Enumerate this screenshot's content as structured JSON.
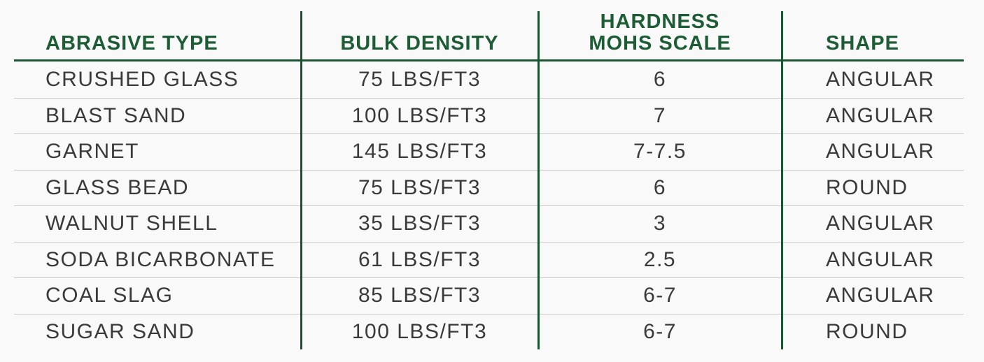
{
  "table": {
    "columns": [
      {
        "label": "ABRASIVE TYPE"
      },
      {
        "label": "BULK DENSITY"
      },
      {
        "label": "HARDNESS",
        "label2": "MOHS SCALE"
      },
      {
        "label": "SHAPE"
      }
    ],
    "rows": [
      [
        "CRUSHED GLASS",
        "75 LBS/FT3",
        "6",
        "ANGULAR"
      ],
      [
        "BLAST SAND",
        "100 LBS/FT3",
        "7",
        "ANGULAR"
      ],
      [
        "GARNET",
        "145 LBS/FT3",
        "7-7.5",
        "ANGULAR"
      ],
      [
        "GLASS BEAD",
        "75 LBS/FT3",
        "6",
        "ROUND"
      ],
      [
        "WALNUT SHELL",
        "35 LBS/FT3",
        "3",
        "ANGULAR"
      ],
      [
        "SODA BICARBONATE",
        "61 LBS/FT3",
        "2.5",
        "ANGULAR"
      ],
      [
        "COAL SLAG",
        "85 LBS/FT3",
        "6-7",
        "ANGULAR"
      ],
      [
        "SUGAR SAND",
        "100 LBS/FT3",
        "6-7",
        "ROUND"
      ]
    ]
  },
  "colors": {
    "header_text": "#1d5c34",
    "line_green": "#1b5332",
    "body_text": "#3a3a3a",
    "row_separator": "#c6c6c6",
    "background": "#f8f9f8"
  },
  "chart_data": {
    "type": "table",
    "title": "",
    "columns": [
      "ABRASIVE TYPE",
      "BULK DENSITY",
      "HARDNESS MOHS SCALE",
      "SHAPE"
    ],
    "rows": [
      [
        "CRUSHED GLASS",
        "75 LBS/FT3",
        "6",
        "ANGULAR"
      ],
      [
        "BLAST SAND",
        "100 LBS/FT3",
        "7",
        "ANGULAR"
      ],
      [
        "GARNET",
        "145 LBS/FT3",
        "7-7.5",
        "ANGULAR"
      ],
      [
        "GLASS BEAD",
        "75 LBS/FT3",
        "6",
        "ROUND"
      ],
      [
        "WALNUT SHELL",
        "35 LBS/FT3",
        "3",
        "ANGULAR"
      ],
      [
        "SODA BICARBONATE",
        "61 LBS/FT3",
        "2.5",
        "ANGULAR"
      ],
      [
        "COAL SLAG",
        "85 LBS/FT3",
        "6-7",
        "ANGULAR"
      ],
      [
        "SUGAR SAND",
        "100 LBS/FT3",
        "6-7",
        "ROUND"
      ]
    ],
    "layout_hints": {
      "header_color": "#1d5c34",
      "column_dividers": true,
      "bulk_density_units": "LBS/FT3",
      "alignment": [
        "left",
        "center",
        "center",
        "left"
      ]
    }
  }
}
